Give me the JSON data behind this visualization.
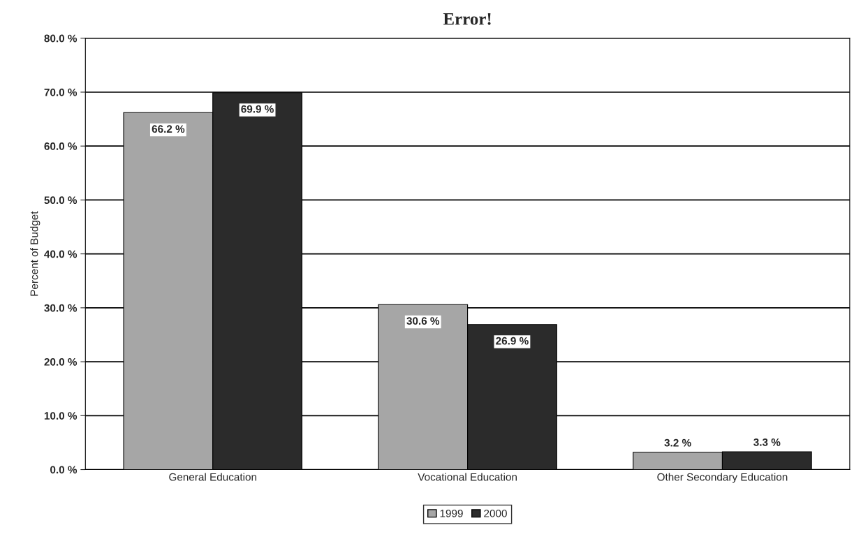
{
  "chart_data": {
    "type": "bar",
    "title": "Error!",
    "ylabel": "Percent of Budget",
    "categories": [
      "General Education",
      "Vocational Education",
      "Other Secondary Education"
    ],
    "series": [
      {
        "name": "1999",
        "color": "#a6a6a6",
        "values": [
          66.2,
          30.6,
          3.2
        ],
        "value_labels": [
          "66.2 %",
          "30.6 %",
          "3.2 %"
        ]
      },
      {
        "name": "2000",
        "color": "#2b2b2b",
        "values": [
          69.9,
          26.9,
          3.3
        ],
        "value_labels": [
          "69.9 %",
          "26.9 %",
          "3.3 %"
        ]
      }
    ],
    "ylim": [
      0,
      80
    ],
    "yticks": [
      {
        "value": 0,
        "label": "0.0 %"
      },
      {
        "value": 10,
        "label": "10.0 %"
      },
      {
        "value": 20,
        "label": "20.0 %"
      },
      {
        "value": 30,
        "label": "30.0 %"
      },
      {
        "value": 40,
        "label": "40.0 %"
      },
      {
        "value": 50,
        "label": "50.0 %"
      },
      {
        "value": 60,
        "label": "60.0 %"
      },
      {
        "value": 70,
        "label": "70.0 %"
      },
      {
        "value": 80,
        "label": "80.0 %"
      }
    ],
    "grid": "y",
    "legend": "bottom"
  }
}
